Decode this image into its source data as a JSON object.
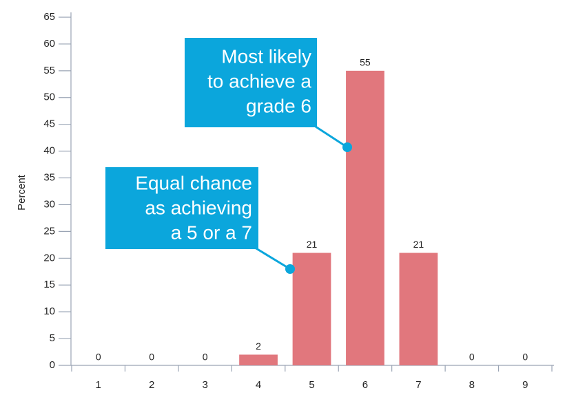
{
  "chart_data": {
    "type": "bar",
    "y_label": "Percent",
    "categories": [
      "1",
      "2",
      "3",
      "4",
      "5",
      "6",
      "7",
      "8",
      "9"
    ],
    "values": [
      0,
      0,
      0,
      2,
      21,
      55,
      21,
      0,
      0
    ],
    "color": "#e1777d",
    "ylim": [
      0,
      65
    ],
    "yticks": [
      0,
      5,
      10,
      15,
      20,
      25,
      30,
      35,
      40,
      45,
      50,
      55,
      60,
      65
    ],
    "annotations": [
      {
        "lines": [
          "Most likely",
          "to achieve a",
          "grade 6"
        ]
      },
      {
        "lines": [
          "Equal chance",
          "as achieving",
          "a 5 or a 7"
        ]
      }
    ]
  }
}
